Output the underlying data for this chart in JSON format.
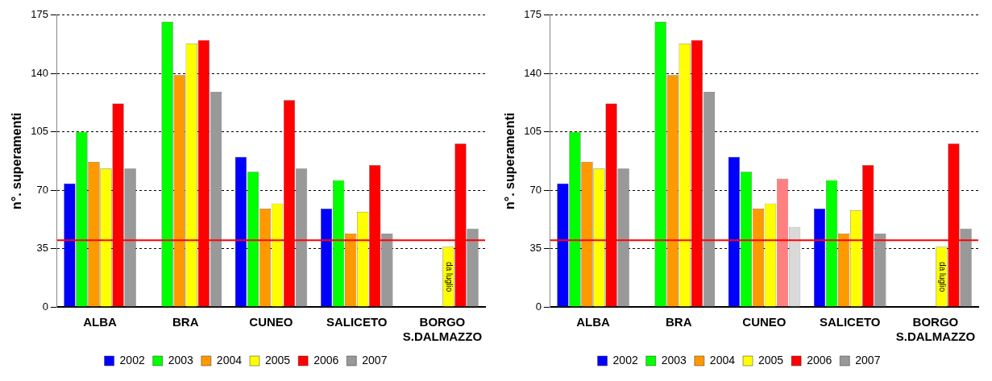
{
  "chart_data": [
    {
      "type": "bar",
      "ylabel": "n°. superamenti",
      "categories": [
        "ALBA",
        "BRA",
        "CUNEO",
        "SALICETO",
        "BORGO S.DALMAZZO"
      ],
      "series": [
        {
          "name": "2002",
          "color": "#0000ff",
          "values": [
            74,
            null,
            90,
            59,
            null
          ]
        },
        {
          "name": "2003",
          "color": "#00ff00",
          "values": [
            105,
            171,
            81,
            76,
            null
          ]
        },
        {
          "name": "2004",
          "color": "#ff9900",
          "values": [
            87,
            139,
            59,
            44,
            null
          ]
        },
        {
          "name": "2005",
          "color": "#ffff00",
          "values": [
            83,
            158,
            62,
            57,
            36
          ]
        },
        {
          "name": "2006",
          "color": "#ff0000",
          "values": [
            122,
            160,
            124,
            85,
            98
          ]
        },
        {
          "name": "2007",
          "color": "#999999",
          "values": [
            83,
            129,
            83,
            44,
            47
          ]
        }
      ],
      "ylim": [
        0,
        175
      ],
      "yticks": [
        0,
        35,
        70,
        105,
        140,
        175
      ],
      "grid": "y",
      "legend": "bottom",
      "ref_lines": [
        {
          "axis": "y",
          "value": 40,
          "color": "#ff0000"
        }
      ],
      "annotations": [
        {
          "text": "da luglio",
          "x": "BORGO S.DALMAZZO",
          "y": 18
        }
      ]
    },
    {
      "type": "bar",
      "ylabel": "n°. superamenti",
      "categories": [
        "ALBA",
        "BRA",
        "CUNEO",
        "SALICETO",
        "BORGO S.DALMAZZO"
      ],
      "series": [
        {
          "name": "2002",
          "color": "#0000ff",
          "values": [
            74,
            null,
            90,
            59,
            null
          ]
        },
        {
          "name": "2003",
          "color": "#00ff00",
          "values": [
            105,
            171,
            81,
            76,
            null
          ]
        },
        {
          "name": "2004",
          "color": "#ff9900",
          "values": [
            87,
            139,
            59,
            44,
            null
          ]
        },
        {
          "name": "2005",
          "color": "#ffff00",
          "values": [
            83,
            158,
            62,
            58,
            36
          ]
        },
        {
          "name": "2006",
          "color": "#ff0000",
          "colors": [
            "#ff0000",
            "#ff0000",
            "#ff8080",
            "#ff0000",
            "#ff0000"
          ],
          "values": [
            122,
            160,
            77,
            85,
            98
          ]
        },
        {
          "name": "2007",
          "color": "#999999",
          "colors": [
            "#999999",
            "#999999",
            "#d9d9d9",
            "#999999",
            "#999999"
          ],
          "values": [
            83,
            129,
            48,
            44,
            47
          ]
        }
      ],
      "ylim": [
        0,
        175
      ],
      "yticks": [
        0,
        35,
        70,
        105,
        140,
        175
      ],
      "grid": "y",
      "legend": "bottom",
      "ref_lines": [
        {
          "axis": "y",
          "value": 40,
          "color": "#ff0000"
        }
      ],
      "annotations": [
        {
          "text": "da luglio",
          "x": "BORGO S.DALMAZZO",
          "y": 18
        }
      ]
    }
  ]
}
